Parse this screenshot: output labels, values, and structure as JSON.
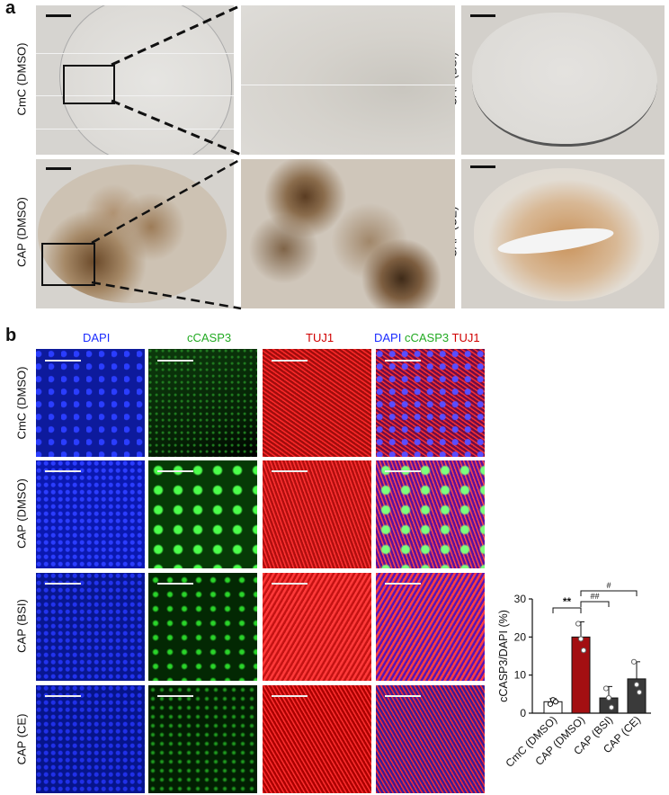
{
  "panel_a": {
    "letter": "a",
    "rows": [
      "CmC (DMSO)",
      "CAP (DMSO)"
    ],
    "right_rows": [
      "CAP (BSI)",
      "CAP (CE)"
    ]
  },
  "panel_b": {
    "letter": "b",
    "columns": {
      "dapi": "DAPI",
      "ccasp3": "cCASP3",
      "tuj1": "TUJ1",
      "merge_dapi": "DAPI",
      "merge_ccasp3": "cCASP3",
      "merge_tuj1": "TUJ1"
    },
    "rows": [
      "CmC (DMSO)",
      "CAP (DMSO)",
      "CAP (BSI)",
      "CAP (CE)"
    ]
  },
  "colors": {
    "dapi": "#1a2bff",
    "ccasp3": "#2fd42f",
    "tuj1": "#ff2020",
    "red_text": "#d00000",
    "bar_red": "#a30f12",
    "bar_gray": "#3a3a3a"
  },
  "chart_data": {
    "type": "bar",
    "categories": [
      "CmC (DMSO)",
      "CAP (DMSO)",
      "CAP (BSI)",
      "CAP (CE)"
    ],
    "values": [
      3,
      20,
      4,
      9
    ],
    "errors": [
      0.8,
      4,
      3,
      4.5
    ],
    "points": [
      [
        2.4,
        3.5,
        3.0
      ],
      [
        23.5,
        19.5,
        16.5
      ],
      [
        6.5,
        4.0,
        1.5
      ],
      [
        13.5,
        7.5,
        5.5
      ]
    ],
    "bar_colors": [
      "#ffffff",
      "#a30f12",
      "#3a3a3a",
      "#3a3a3a"
    ],
    "ylabel": "cCASP3/DAPI (%)",
    "ylim": [
      0,
      30
    ],
    "yticks": [
      "0",
      "10",
      "20",
      "30"
    ],
    "significance": [
      {
        "from": 0,
        "to": 1,
        "label": "**"
      },
      {
        "from": 1,
        "to": 2,
        "label": "##"
      },
      {
        "from": 1,
        "to": 3,
        "label": "#"
      }
    ]
  }
}
